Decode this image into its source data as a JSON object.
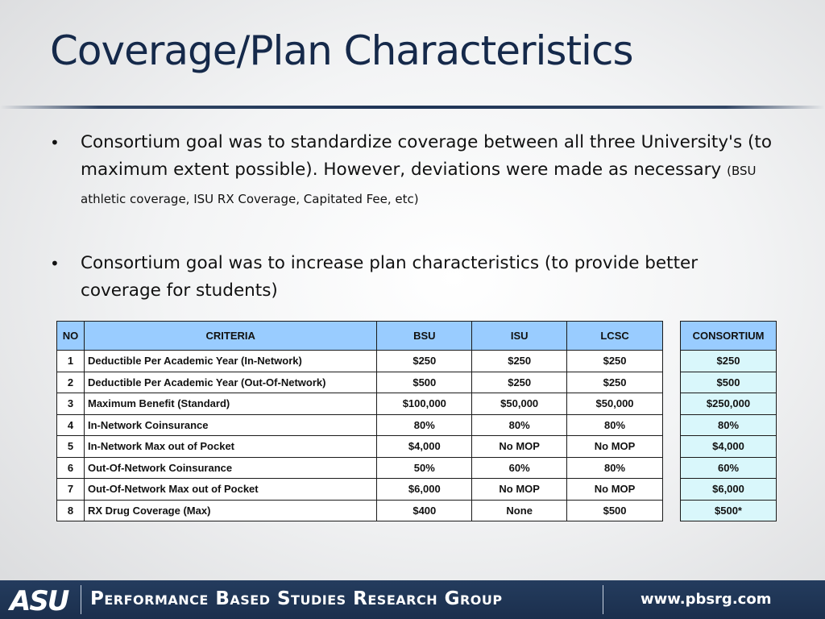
{
  "slide": {
    "title": "Coverage/Plan Characteristics",
    "bullets": [
      {
        "text": "Consortium goal was to standardize coverage between all three University's (to maximum extent possible).  However, deviations were made as necessary",
        "small": "(BSU athletic coverage, ISU RX Coverage, Capitated Fee, etc)"
      },
      {
        "text": "Consortium goal was to increase plan characteristics (to provide better coverage for students)",
        "small": ""
      }
    ]
  },
  "table": {
    "headers": [
      "NO",
      "CRITERIA",
      "BSU",
      "ISU",
      "LCSC"
    ],
    "consortium_header": "CONSORTIUM",
    "rows": [
      {
        "no": "1",
        "criteria": "Deductible Per Academic Year (In-Network)",
        "bsu": "$250",
        "isu": "$250",
        "lcsc": "$250",
        "consortium": "$250"
      },
      {
        "no": "2",
        "criteria": "Deductible Per Academic Year (Out-Of-Network)",
        "bsu": "$500",
        "isu": "$250",
        "lcsc": "$250",
        "consortium": "$500"
      },
      {
        "no": "3",
        "criteria": "Maximum Benefit (Standard)",
        "bsu": "$100,000",
        "isu": "$50,000",
        "lcsc": "$50,000",
        "consortium": "$250,000"
      },
      {
        "no": "4",
        "criteria": "In-Network Coinsurance",
        "bsu": "80%",
        "isu": "80%",
        "lcsc": "80%",
        "consortium": "80%"
      },
      {
        "no": "5",
        "criteria": "In-Network Max out of Pocket",
        "bsu": "$4,000",
        "isu": "No MOP",
        "lcsc": "No MOP",
        "consortium": "$4,000"
      },
      {
        "no": "6",
        "criteria": "Out-Of-Network Coinsurance",
        "bsu": "50%",
        "isu": "60%",
        "lcsc": "80%",
        "consortium": "60%"
      },
      {
        "no": "7",
        "criteria": "Out-Of-Network Max out of Pocket",
        "bsu": "$6,000",
        "isu": "No MOP",
        "lcsc": "No MOP",
        "consortium": "$6,000"
      },
      {
        "no": "8",
        "criteria": "RX Drug Coverage (Max)",
        "bsu": "$400",
        "isu": "None",
        "lcsc": "$500",
        "consortium": "$500*"
      }
    ]
  },
  "footer": {
    "logo_text": "ASU",
    "group_name": "Performance Based Studies Research Group",
    "website": "www.pbsrg.com"
  },
  "colors": {
    "title": "#15294a",
    "header_fill": "#99ccff",
    "consortium_fill": "#d9f7fb",
    "footer_bg": "#1f3556"
  },
  "icons": [
    "bullet-dot-icon",
    "asu-logo"
  ]
}
